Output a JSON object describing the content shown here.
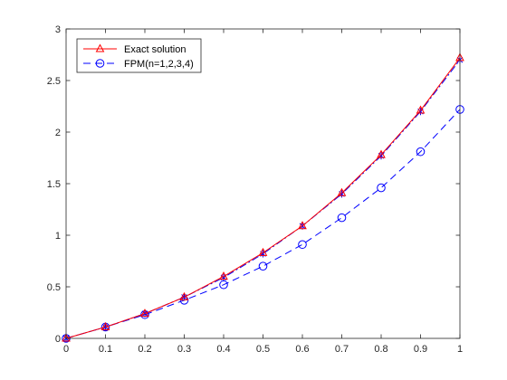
{
  "chart_data": {
    "type": "line",
    "title": "",
    "xlabel": "",
    "ylabel": "",
    "xlim": [
      0,
      1
    ],
    "ylim": [
      0,
      3
    ],
    "grid": false,
    "legend_position": "top-left",
    "x_ticks": [
      "0",
      "0.1",
      "0.2",
      "0.3",
      "0.4",
      "0.5",
      "0.6",
      "0.7",
      "0.8",
      "0.9",
      "1"
    ],
    "y_ticks": [
      "0",
      "0.5",
      "1",
      "1.5",
      "2",
      "2.5",
      "3"
    ],
    "x": [
      0,
      0.1,
      0.2,
      0.3,
      0.4,
      0.5,
      0.6,
      0.7,
      0.8,
      0.9,
      1.0
    ],
    "series": [
      {
        "name": "Exact solution",
        "color": "#ff0000",
        "line_style": "solid",
        "marker": "triangle",
        "values": [
          0,
          0.11,
          0.24,
          0.4,
          0.6,
          0.83,
          1.09,
          1.41,
          1.78,
          2.21,
          2.72
        ]
      },
      {
        "name": "",
        "color": "#0000ff",
        "line_style": "dashdot",
        "marker": "asterisk",
        "values": [
          0,
          0.11,
          0.24,
          0.4,
          0.59,
          0.82,
          1.09,
          1.4,
          1.77,
          2.2,
          2.7
        ]
      },
      {
        "name": "FPM(n=1,2,3,4)",
        "color": "#0000ff",
        "line_style": "dashed",
        "marker": "circle",
        "values": [
          0,
          0.11,
          0.23,
          0.37,
          0.52,
          0.7,
          0.91,
          1.17,
          1.46,
          1.81,
          2.22
        ]
      }
    ],
    "legend": [
      {
        "label": "Exact solution",
        "color": "#ff0000",
        "line_style": "solid",
        "marker": "triangle"
      },
      {
        "label": "FPM(n=1,2,3,4)",
        "color": "#0000ff",
        "line_style": "dashed",
        "marker": "circle"
      }
    ]
  }
}
